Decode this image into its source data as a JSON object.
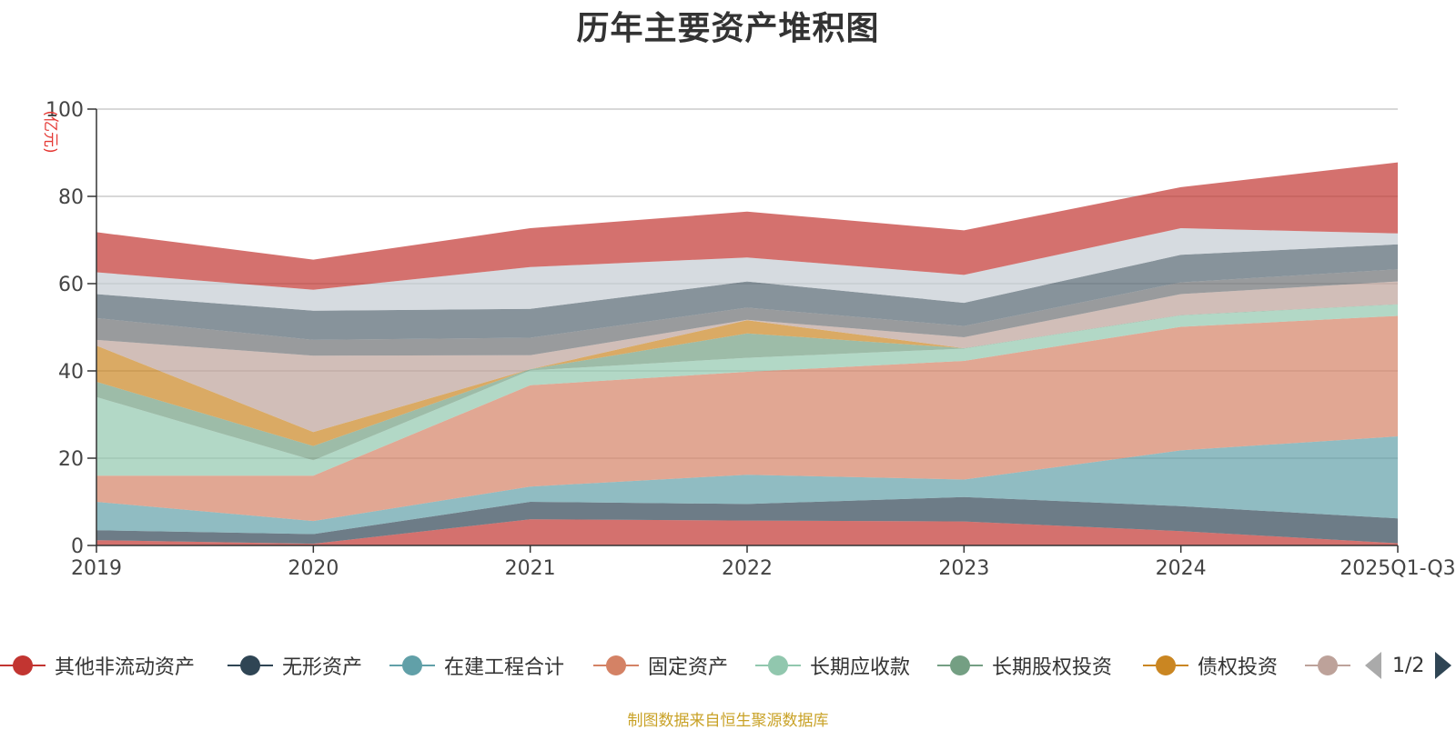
{
  "chart_data": {
    "type": "area",
    "stacked": true,
    "title": "历年主要资产堆积图",
    "ylabel": "(亿元)",
    "ylim": [
      0,
      100
    ],
    "yticks": [
      0,
      20,
      40,
      60,
      80,
      100
    ],
    "grid": true,
    "categories": [
      "2019",
      "2020",
      "2021",
      "2022",
      "2023",
      "2024",
      "2025Q1-Q3"
    ],
    "series": [
      {
        "name": "其他非流动资产",
        "color": "#c23531",
        "values": [
          1.2,
          0.4,
          6.0,
          5.7,
          5.5,
          3.3,
          0.5
        ]
      },
      {
        "name": "无形资产",
        "color": "#2f4554",
        "values": [
          2.3,
          2.2,
          4.0,
          3.8,
          5.6,
          5.7,
          5.7
        ]
      },
      {
        "name": "在建工程合计",
        "color": "#61a0a8",
        "values": [
          6.5,
          3.0,
          3.5,
          6.7,
          4.0,
          12.8,
          18.8
        ]
      },
      {
        "name": "固定资产",
        "color": "#d48265",
        "values": [
          6.0,
          10.4,
          23.2,
          23.6,
          27.2,
          28.3,
          27.6
        ]
      },
      {
        "name": "长期应收款",
        "color": "#91c7ae",
        "values": [
          18.0,
          3.5,
          3.4,
          3.2,
          2.8,
          2.6,
          2.6
        ]
      },
      {
        "name": "长期股权投资",
        "color": "#749f83",
        "values": [
          3.5,
          3.3,
          0.3,
          5.6,
          0.1,
          0.1,
          0.1
        ]
      },
      {
        "name": "债权投资",
        "color": "#ca8622",
        "values": [
          8.3,
          3.2,
          0.0,
          3.0,
          0.0,
          0.0,
          0.0
        ]
      },
      {
        "name": "",
        "color": "#bda29a",
        "values": [
          1.3,
          17.5,
          3.2,
          0.1,
          2.5,
          4.8,
          5.2
        ]
      },
      {
        "name": "",
        "color": "#6e7074",
        "values": [
          5.0,
          3.6,
          4.0,
          2.8,
          2.6,
          2.7,
          2.8
        ]
      },
      {
        "name": "",
        "color": "#546570",
        "values": [
          5.5,
          6.7,
          6.6,
          6.0,
          5.3,
          6.3,
          5.7
        ]
      },
      {
        "name": "",
        "color": "#c4ccd3",
        "values": [
          5.0,
          4.8,
          9.6,
          5.5,
          6.4,
          6.1,
          2.5
        ]
      },
      {
        "name": "",
        "color": "#c23531",
        "values": [
          9.2,
          6.9,
          8.9,
          10.5,
          10.2,
          9.4,
          16.3
        ]
      }
    ]
  },
  "legend": {
    "page": "1/2",
    "items": [
      {
        "label": "其他非流动资产",
        "color": "#c23531"
      },
      {
        "label": "无形资产",
        "color": "#2f4554"
      },
      {
        "label": "在建工程合计",
        "color": "#61a0a8"
      },
      {
        "label": "固定资产",
        "color": "#d48265"
      },
      {
        "label": "长期应收款",
        "color": "#91c7ae"
      },
      {
        "label": "长期股权投资",
        "color": "#749f83"
      },
      {
        "label": "债权投资",
        "color": "#ca8622"
      },
      {
        "label": "",
        "color": "#bda29a"
      }
    ]
  },
  "source": "制图数据来自恒生聚源数据库"
}
